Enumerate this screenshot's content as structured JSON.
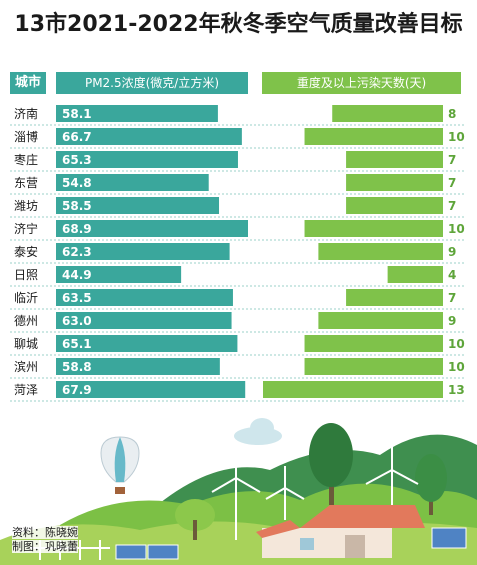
{
  "title": "13市2021-2022年秋冬季空气质量改善目标",
  "header": {
    "city_label": "城市",
    "left_label": "PM2.5浓度(微克/立方米)",
    "right_label": "重度及以上污染天数(天)"
  },
  "credits": {
    "source": "资料：陈晓婉",
    "made_by": "制图：巩晓蕾"
  },
  "colors": {
    "pm_bar": "#3aa79c",
    "days_bar": "#7fc24a",
    "days_value": "#5ea53a",
    "row_divider": "#9bd0c9"
  },
  "chart_data": [
    {
      "type": "bar",
      "orientation": "horizontal",
      "title": "PM2.5浓度(微克/立方米)",
      "categories": [
        "济南",
        "淄博",
        "枣庄",
        "东营",
        "潍坊",
        "济宁",
        "泰安",
        "日照",
        "临沂",
        "德州",
        "聊城",
        "滨州",
        "菏泽"
      ],
      "values": [
        58.1,
        66.7,
        65.3,
        54.8,
        58.5,
        68.9,
        62.3,
        44.9,
        63.5,
        63.0,
        65.1,
        58.8,
        67.9
      ],
      "value_labels": [
        "58.1",
        "66.7",
        "65.3",
        "54.8",
        "58.5",
        "68.9",
        "62.3",
        "44.9",
        "63.5",
        "63.0",
        "65.1",
        "58.8",
        "67.9"
      ]
    },
    {
      "type": "bar",
      "orientation": "horizontal",
      "direction": "right-to-left",
      "title": "重度及以上污染天数(天)",
      "categories": [
        "济南",
        "淄博",
        "枣庄",
        "东营",
        "潍坊",
        "济宁",
        "泰安",
        "日照",
        "临沂",
        "德州",
        "聊城",
        "滨州",
        "菏泽"
      ],
      "values": [
        8,
        10,
        7,
        7,
        7,
        10,
        9,
        4,
        7,
        9,
        10,
        10,
        13
      ],
      "value_labels": [
        "8",
        "10",
        "7",
        "7",
        "7",
        "10",
        "9",
        "4",
        "7",
        "9",
        "10",
        "10",
        "13"
      ]
    }
  ]
}
